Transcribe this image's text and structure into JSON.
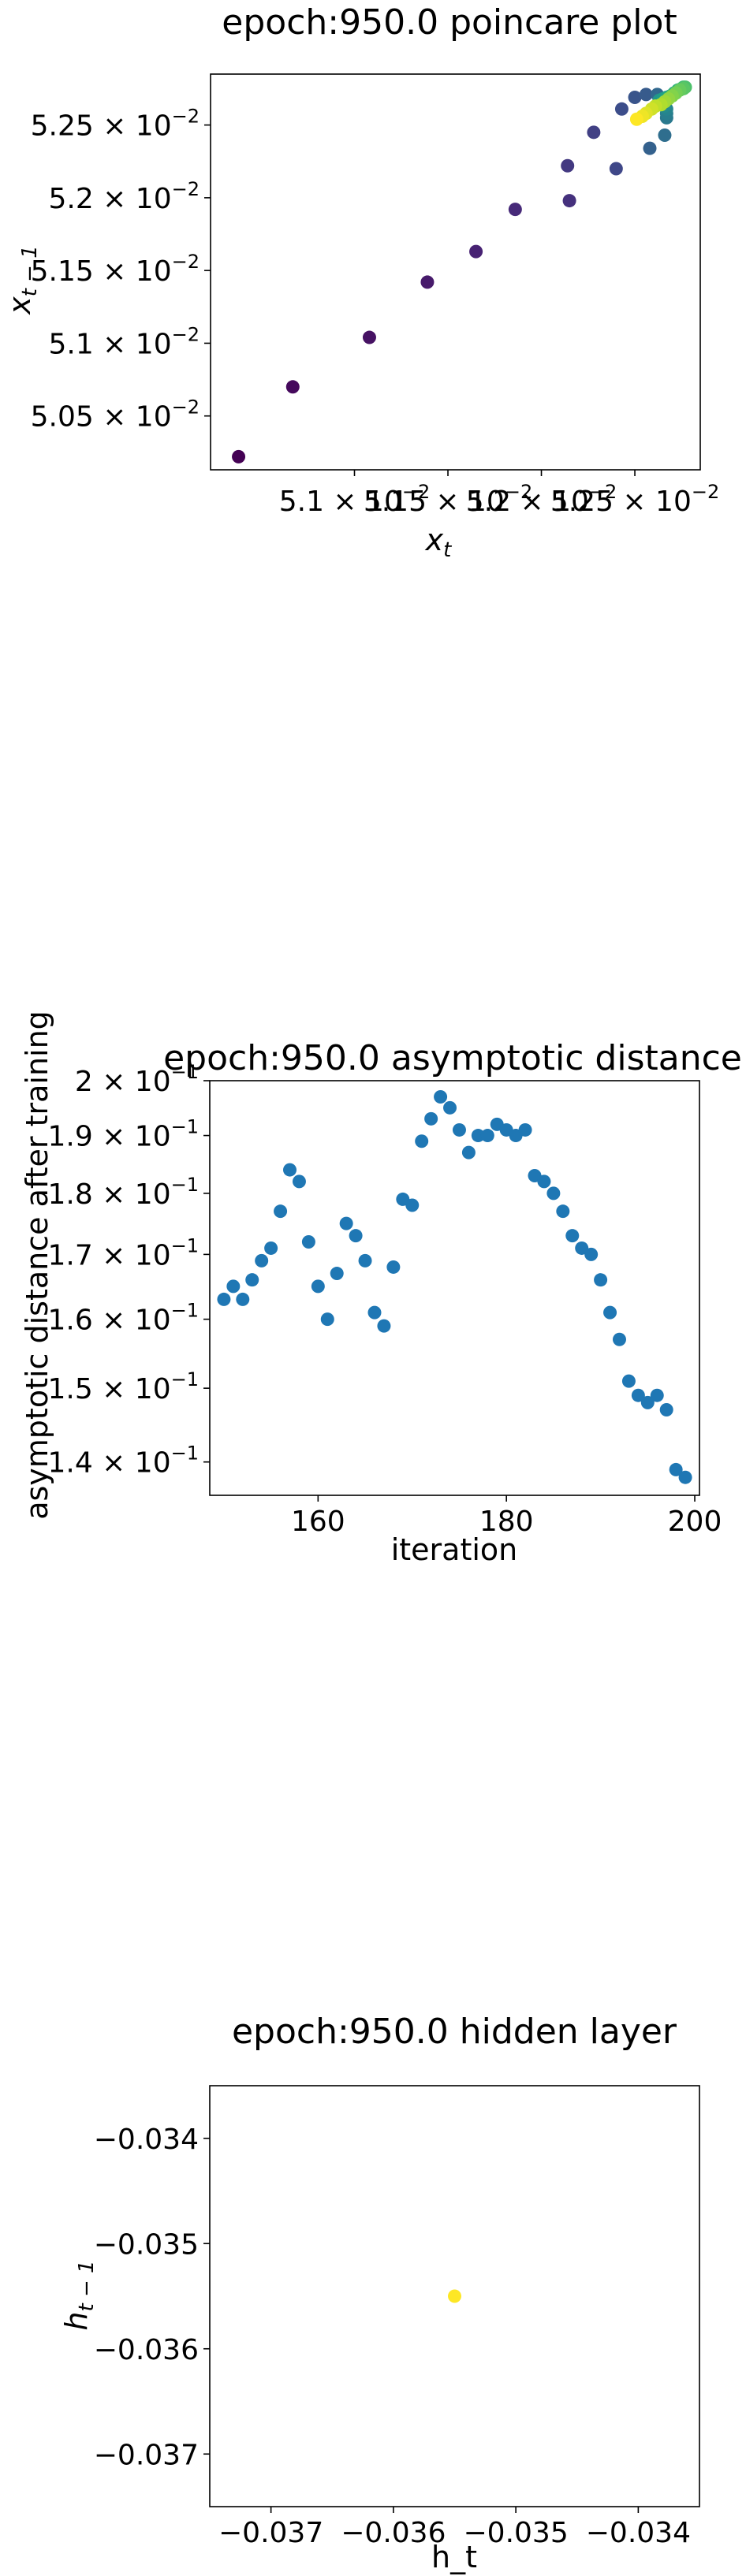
{
  "chart_data": [
    {
      "type": "scatter",
      "title": "epoch:950.0 poincare plot",
      "xlabel": "x_t",
      "ylabel": "x_{t-1}",
      "x_ticks": [
        "5.1 × 10⁻²",
        "5.15 × 10⁻²",
        "5.2 × 10⁻²",
        "5.25 × 10⁻²"
      ],
      "y_ticks": [
        "5.05 × 10⁻²",
        "5.1 × 10⁻²",
        "5.15 × 10⁻²",
        "5.2 × 10⁻²",
        "5.25 × 10⁻²"
      ],
      "x_tick_values": [
        0.051,
        0.0515,
        0.052,
        0.0525
      ],
      "y_tick_values": [
        0.0505,
        0.051,
        0.0515,
        0.052,
        0.0525
      ],
      "xlim": [
        0.05023,
        0.05285
      ],
      "ylim": [
        0.05013,
        0.05285
      ],
      "colormap": "viridis",
      "grid": false,
      "points": [
        {
          "x": 0.05038,
          "y": 0.05022
        },
        {
          "x": 0.05067,
          "y": 0.0507
        },
        {
          "x": 0.05108,
          "y": 0.05104
        },
        {
          "x": 0.05139,
          "y": 0.05142
        },
        {
          "x": 0.05165,
          "y": 0.05163
        },
        {
          "x": 0.05186,
          "y": 0.05192
        },
        {
          "x": 0.05215,
          "y": 0.05198
        },
        {
          "x": 0.05214,
          "y": 0.05222
        },
        {
          "x": 0.05228,
          "y": 0.05245
        },
        {
          "x": 0.0524,
          "y": 0.0522
        },
        {
          "x": 0.05243,
          "y": 0.05261
        },
        {
          "x": 0.0525,
          "y": 0.05269
        },
        {
          "x": 0.05256,
          "y": 0.05271
        },
        {
          "x": 0.05258,
          "y": 0.05234
        },
        {
          "x": 0.05262,
          "y": 0.05271
        },
        {
          "x": 0.05266,
          "y": 0.05243
        },
        {
          "x": 0.05266,
          "y": 0.05268
        },
        {
          "x": 0.05267,
          "y": 0.05255
        },
        {
          "x": 0.05267,
          "y": 0.05258
        },
        {
          "x": 0.05267,
          "y": 0.05261
        },
        {
          "x": 0.05266,
          "y": 0.05263
        },
        {
          "x": 0.05264,
          "y": 0.05265
        },
        {
          "x": 0.05263,
          "y": 0.05267
        },
        {
          "x": 0.05265,
          "y": 0.05268
        },
        {
          "x": 0.05267,
          "y": 0.05269
        },
        {
          "x": 0.05269,
          "y": 0.0527
        },
        {
          "x": 0.05271,
          "y": 0.05272
        },
        {
          "x": 0.05273,
          "y": 0.05274
        },
        {
          "x": 0.05275,
          "y": 0.05275
        },
        {
          "x": 0.05276,
          "y": 0.05276
        },
        {
          "x": 0.05277,
          "y": 0.05276
        },
        {
          "x": 0.05276,
          "y": 0.05275
        },
        {
          "x": 0.05274,
          "y": 0.05274
        },
        {
          "x": 0.05272,
          "y": 0.05272
        },
        {
          "x": 0.0527,
          "y": 0.0527
        },
        {
          "x": 0.05268,
          "y": 0.05268
        },
        {
          "x": 0.05266,
          "y": 0.05266
        },
        {
          "x": 0.05264,
          "y": 0.05264
        },
        {
          "x": 0.05261,
          "y": 0.05263
        },
        {
          "x": 0.05259,
          "y": 0.05261
        },
        {
          "x": 0.05256,
          "y": 0.05258
        },
        {
          "x": 0.05254,
          "y": 0.05256
        },
        {
          "x": 0.05251,
          "y": 0.05254
        }
      ]
    },
    {
      "type": "scatter",
      "title": "epoch:950.0 asymptotic distance",
      "xlabel": "iteration",
      "ylabel": "asymptotic distance after training",
      "x_ticks": [
        "160",
        "180",
        "200"
      ],
      "x_tick_values": [
        160,
        180,
        200
      ],
      "y_ticks": [
        "1.4 × 10⁻¹",
        "1.5 × 10⁻¹",
        "1.6 × 10⁻¹",
        "1.7 × 10⁻¹",
        "1.8 × 10⁻¹",
        "1.9 × 10⁻¹",
        "2 × 10⁻¹"
      ],
      "y_tick_values": [
        0.14,
        0.15,
        0.16,
        0.17,
        0.18,
        0.19,
        0.2
      ],
      "y_scale": "log",
      "xlim": [
        148.5,
        200.5
      ],
      "ylim": [
        0.1357,
        0.2
      ],
      "color": "#1f77b4",
      "grid": false,
      "x": [
        150,
        151,
        152,
        153,
        154,
        155,
        156,
        157,
        158,
        159,
        160,
        161,
        162,
        163,
        164,
        165,
        166,
        167,
        168,
        169,
        170,
        171,
        172,
        173,
        174,
        175,
        176,
        177,
        178,
        179,
        180,
        181,
        182,
        183,
        184,
        185,
        186,
        187,
        188,
        189,
        190,
        191,
        192,
        193,
        194,
        195,
        196,
        197,
        198,
        199
      ],
      "y": [
        0.163,
        0.165,
        0.163,
        0.166,
        0.169,
        0.171,
        0.177,
        0.184,
        0.182,
        0.172,
        0.165,
        0.16,
        0.167,
        0.175,
        0.173,
        0.169,
        0.161,
        0.159,
        0.168,
        0.179,
        0.178,
        0.189,
        0.193,
        0.197,
        0.195,
        0.191,
        0.187,
        0.19,
        0.19,
        0.192,
        0.191,
        0.19,
        0.191,
        0.183,
        0.182,
        0.18,
        0.177,
        0.173,
        0.171,
        0.17,
        0.166,
        0.161,
        0.157,
        0.151,
        0.149,
        0.148,
        0.149,
        0.147,
        0.139,
        0.138
      ]
    },
    {
      "type": "scatter",
      "title": "epoch:950.0 hidden layer",
      "xlabel": "h_t",
      "ylabel": "h_{t-1}",
      "x_ticks": [
        "−0.037",
        "−0.036",
        "−0.035",
        "−0.034"
      ],
      "x_tick_values": [
        -0.037,
        -0.036,
        -0.035,
        -0.034
      ],
      "y_ticks": [
        "−0.034",
        "−0.035",
        "−0.036",
        "−0.037"
      ],
      "y_tick_values": [
        -0.034,
        -0.035,
        -0.036,
        -0.037
      ],
      "xlim": [
        -0.0375,
        -0.0335
      ],
      "ylim": [
        -0.0375,
        -0.0335
      ],
      "color": "#fde725",
      "grid": false,
      "points": [
        {
          "x": -0.0355,
          "y": -0.0355
        }
      ]
    }
  ]
}
